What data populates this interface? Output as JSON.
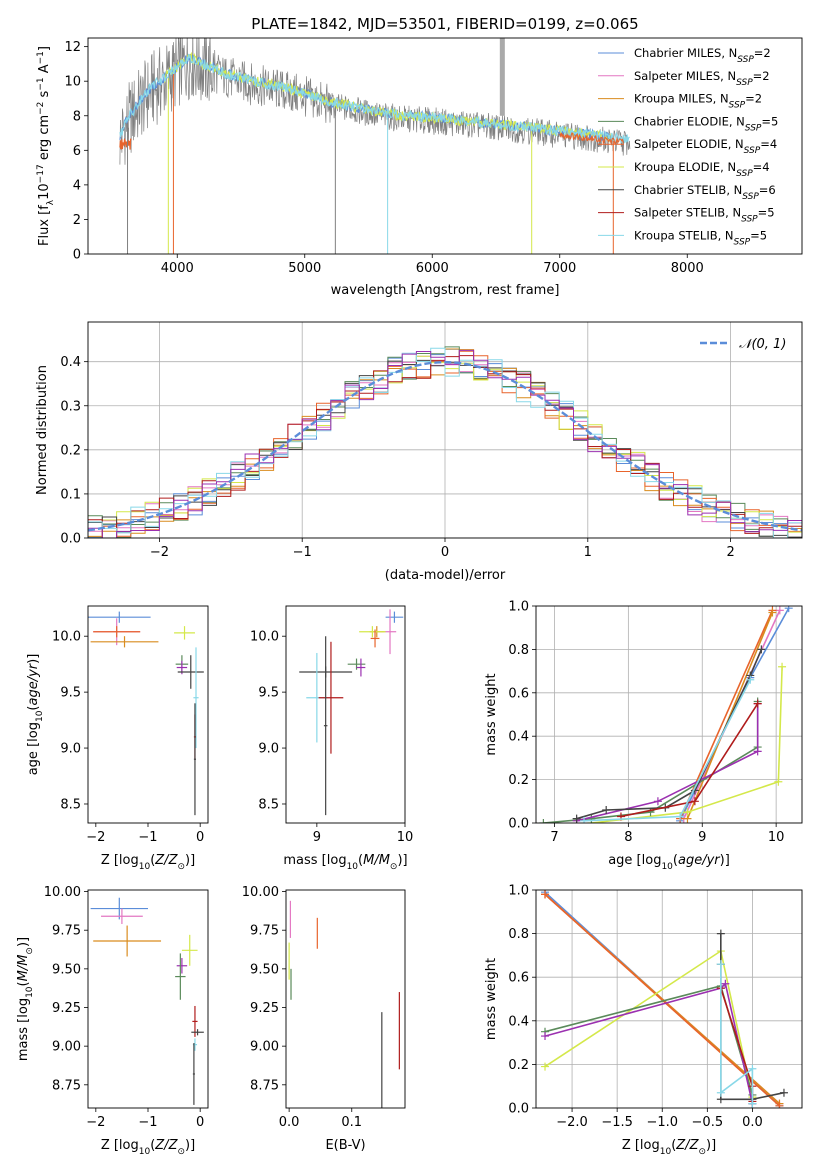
{
  "figure_title": "PLATE=1842, MJD=53501, FIBERID=0199, z=0.065",
  "colors": {
    "chabrier_miles": "#5b8dd9",
    "salpeter_miles": "#e377c2",
    "kroupa_miles": "#d98c1f",
    "chabrier_elodie": "#5a8a5a",
    "salpeter_elodie": "#e8642c",
    "kroupa_elodie": "#d4e84a",
    "chabrier_stelib": "#444444",
    "salpeter_stelib": "#b01c1c",
    "kroupa_stelib": "#88d8e8",
    "purple": "#9b30b0",
    "data_grey": "#808080"
  },
  "chart_data": [
    {
      "id": "spectrum",
      "type": "line",
      "xlabel": "wavelength [Angstrom, rest frame]",
      "ylabel": "Flux [f",
      "ylabel_parts": [
        "Flux [f",
        "λ",
        "10",
        "−17",
        " erg cm",
        "−2",
        " s",
        "−1",
        " A",
        "−1",
        "]"
      ],
      "xlim": [
        3300,
        8900
      ],
      "ylim": [
        0,
        12.5
      ],
      "xticks": [
        4000,
        5000,
        6000,
        7000,
        8000
      ],
      "yticks": [
        0,
        2,
        4,
        6,
        8,
        10,
        12
      ],
      "continuum": {
        "x": [
          3550,
          3600,
          3700,
          3800,
          3900,
          4000,
          4100,
          4200,
          4400,
          4600,
          4800,
          5000,
          5200,
          5400,
          5600,
          5800,
          6000,
          6200,
          6400,
          6600,
          6800,
          7000,
          7200,
          7400,
          7600,
          7800,
          8000,
          8200,
          8400,
          8600,
          8800
        ],
        "y": [
          6.6,
          7.5,
          8.6,
          9.5,
          10.0,
          10.6,
          11.2,
          10.8,
          10.2,
          9.8,
          9.5,
          9.1,
          8.6,
          8.3,
          8.0,
          7.8,
          7.7,
          7.55,
          7.4,
          7.25,
          7.1,
          6.9,
          6.75,
          6.55,
          6.4,
          6.3,
          6.15,
          6.05,
          5.95,
          5.85,
          5.75
        ]
      },
      "legend": [
        {
          "name": "Chabrier MILES, N",
          "sub": "SSP",
          "tail": "=2",
          "color_key": "chabrier_miles"
        },
        {
          "name": "Salpeter MILES, N",
          "sub": "SSP",
          "tail": "=2",
          "color_key": "salpeter_miles"
        },
        {
          "name": "Kroupa MILES, N",
          "sub": "SSP",
          "tail": "=2",
          "color_key": "kroupa_miles"
        },
        {
          "name": "Chabrier ELODIE, N",
          "sub": "SSP",
          "tail": "=5",
          "color_key": "chabrier_elodie"
        },
        {
          "name": "Salpeter ELODIE, N",
          "sub": "SSP",
          "tail": "=4",
          "color_key": "salpeter_elodie"
        },
        {
          "name": "Kroupa ELODIE, N",
          "sub": "SSP",
          "tail": "=4",
          "color_key": "kroupa_elodie"
        },
        {
          "name": "Chabrier STELIB, N",
          "sub": "SSP",
          "tail": "=6",
          "color_key": "chabrier_stelib"
        },
        {
          "name": "Salpeter STELIB, N",
          "sub": "SSP",
          "tail": "=5",
          "color_key": "salpeter_stelib"
        },
        {
          "name": "Kroupa STELIB, N",
          "sub": "SSP",
          "tail": "=5",
          "color_key": "kroupa_stelib"
        }
      ]
    },
    {
      "id": "residuals",
      "type": "line",
      "xlabel": "(data-model)/error",
      "ylabel": "Normed distribution",
      "xlim": [
        -2.5,
        2.5
      ],
      "ylim": [
        0,
        0.49
      ],
      "xticks": [
        -2,
        -1,
        0,
        1,
        2
      ],
      "yticks": [
        0.0,
        0.1,
        0.2,
        0.3,
        0.4
      ],
      "grid": true,
      "legend_label": "𝒩(0, 1)",
      "legend_position": "top-right"
    },
    {
      "id": "age_vs_Z",
      "type": "scatter",
      "xlabel": "Z [log",
      "ylabel": "age  [log",
      "xlim": [
        -2.15,
        0.15
      ],
      "ylim": [
        8.33,
        10.27
      ],
      "xticks": [
        -2,
        -1,
        0
      ],
      "yticks": [
        8.5,
        9.0,
        9.5,
        10.0
      ],
      "points": [
        {
          "x": -1.55,
          "y": 10.17,
          "xerr": 0.6,
          "yerr": 0.05,
          "c": "chabrier_miles"
        },
        {
          "x": -1.6,
          "y": 10.04,
          "xerr": 0.45,
          "yerr": 0.12,
          "c": "salpeter_miles"
        },
        {
          "x": -1.6,
          "y": 10.04,
          "xerr": 0.45,
          "yerr": 0.05,
          "c": "salpeter_elodie"
        },
        {
          "x": -1.45,
          "y": 9.95,
          "xerr": 0.65,
          "yerr": 0.05,
          "c": "kroupa_miles"
        },
        {
          "x": -0.3,
          "y": 10.03,
          "xerr": 0.2,
          "yerr": 0.06,
          "c": "kroupa_elodie"
        },
        {
          "x": -0.35,
          "y": 9.75,
          "xerr": 0.12,
          "yerr": 0.08,
          "c": "chabrier_elodie"
        },
        {
          "x": -0.35,
          "y": 9.72,
          "xerr": 0.1,
          "yerr": 0.06,
          "c": "purple"
        },
        {
          "x": -0.18,
          "y": 9.68,
          "xerr": 0.25,
          "yerr": 0.15,
          "c": "chabrier_stelib"
        },
        {
          "x": -0.08,
          "y": 9.45,
          "xerr": 0.05,
          "yerr": 0.45,
          "c": "kroupa_stelib"
        },
        {
          "x": -0.1,
          "y": 9.1,
          "xerr": 0.02,
          "yerr": 0.2,
          "c": "salpeter_stelib"
        },
        {
          "x": -0.1,
          "y": 8.9,
          "xerr": 0.02,
          "yerr": 0.5,
          "c": "chabrier_stelib"
        }
      ]
    },
    {
      "id": "age_vs_mass",
      "type": "scatter",
      "xlabel": "mass [log",
      "ylabel": "",
      "xlim": [
        8.65,
        10.0
      ],
      "ylim": [
        8.33,
        10.27
      ],
      "xticks": [
        9,
        10
      ],
      "yticks": [
        8.5,
        9.0,
        9.5,
        10.0
      ],
      "points": [
        {
          "x": 9.88,
          "y": 10.17,
          "xerr": 0.1,
          "yerr": 0.05,
          "c": "chabrier_miles"
        },
        {
          "x": 9.83,
          "y": 10.04,
          "xerr": 0.07,
          "yerr": 0.2,
          "c": "salpeter_miles"
        },
        {
          "x": 9.68,
          "y": 10.04,
          "xerr": 0.08,
          "yerr": 0.05,
          "c": "kroupa_miles"
        },
        {
          "x": 9.63,
          "y": 10.04,
          "xerr": 0.15,
          "yerr": 0.05,
          "c": "kroupa_elodie"
        },
        {
          "x": 9.66,
          "y": 9.98,
          "xerr": 0.05,
          "yerr": 0.08,
          "c": "salpeter_elodie"
        },
        {
          "x": 9.45,
          "y": 9.75,
          "xerr": 0.1,
          "yerr": 0.05,
          "c": "chabrier_elodie"
        },
        {
          "x": 9.5,
          "y": 9.72,
          "xerr": 0.05,
          "yerr": 0.08,
          "c": "purple"
        },
        {
          "x": 9.1,
          "y": 9.68,
          "xerr": 0.3,
          "yerr": 0.05,
          "c": "chabrier_stelib"
        },
        {
          "x": 9.0,
          "y": 9.45,
          "xerr": 0.12,
          "yerr": 0.4,
          "c": "kroupa_stelib"
        },
        {
          "x": 9.16,
          "y": 9.45,
          "xerr": 0.14,
          "yerr": 0.5,
          "c": "salpeter_stelib"
        },
        {
          "x": 9.1,
          "y": 9.2,
          "xerr": 0.02,
          "yerr": 0.8,
          "c": "chabrier_stelib"
        }
      ]
    },
    {
      "id": "weight_vs_age",
      "type": "line",
      "xlabel": "age  [log",
      "ylabel": "mass weight",
      "xlim": [
        6.75,
        10.35
      ],
      "ylim": [
        0,
        1.0
      ],
      "xticks": [
        7,
        8,
        9,
        10
      ],
      "yticks": [
        0.0,
        0.2,
        0.4,
        0.6,
        0.8,
        1.0
      ],
      "grid": true,
      "series": [
        {
          "c": "chabrier_miles",
          "x": [
            8.7,
            9.65,
            10.17
          ],
          "y": [
            0.01,
            0.67,
            0.99
          ]
        },
        {
          "c": "salpeter_miles",
          "x": [
            8.75,
            10.05
          ],
          "y": [
            0.02,
            0.98
          ]
        },
        {
          "c": "salpeter_elodie",
          "x": [
            8.7,
            9.95
          ],
          "y": [
            0.02,
            0.98
          ]
        },
        {
          "c": "kroupa_miles",
          "x": [
            8.8,
            9.95
          ],
          "y": [
            0.02,
            0.97
          ]
        },
        {
          "c": "kroupa_elodie",
          "x": [
            7.5,
            8.8,
            10.03,
            10.08
          ],
          "y": [
            0.0,
            0.05,
            0.19,
            0.72
          ]
        },
        {
          "c": "chabrier_elodie",
          "x": [
            6.85,
            7.5,
            8.3,
            9.75,
            9.75
          ],
          "y": [
            0.0,
            0.02,
            0.05,
            0.35,
            0.56
          ]
        },
        {
          "c": "purple",
          "x": [
            7.3,
            8.4,
            9.75,
            9.75
          ],
          "y": [
            0.01,
            0.1,
            0.33,
            0.55
          ]
        },
        {
          "c": "chabrier_stelib",
          "x": [
            7.3,
            7.7,
            8.5,
            8.9,
            9.65,
            9.8
          ],
          "y": [
            0.02,
            0.06,
            0.07,
            0.15,
            0.68,
            0.8
          ]
        },
        {
          "c": "salpeter_stelib",
          "x": [
            7.9,
            8.9,
            9.75
          ],
          "y": [
            0.03,
            0.1,
            0.55
          ]
        },
        {
          "c": "kroupa_stelib",
          "x": [
            7.4,
            8.7,
            9.65
          ],
          "y": [
            0.01,
            0.03,
            0.66
          ]
        }
      ]
    },
    {
      "id": "mass_vs_Z",
      "type": "scatter",
      "xlabel": "Z [log",
      "ylabel": "mass [log",
      "xlim": [
        -2.15,
        0.15
      ],
      "ylim": [
        8.6,
        10.01
      ],
      "xticks": [
        -2,
        -1,
        0
      ],
      "yticks": [
        8.75,
        9.0,
        9.25,
        9.5,
        9.75,
        10.0
      ],
      "points": [
        {
          "x": -1.55,
          "y": 9.89,
          "xerr": 0.55,
          "yerr": 0.07,
          "c": "chabrier_miles"
        },
        {
          "x": -1.5,
          "y": 9.84,
          "xerr": 0.4,
          "yerr": 0.05,
          "c": "salpeter_miles"
        },
        {
          "x": -1.4,
          "y": 9.68,
          "xerr": 0.65,
          "yerr": 0.1,
          "c": "kroupa_miles"
        },
        {
          "x": -0.2,
          "y": 9.62,
          "xerr": 0.15,
          "yerr": 0.1,
          "c": "kroupa_elodie"
        },
        {
          "x": -0.35,
          "y": 9.52,
          "xerr": 0.1,
          "yerr": 0.05,
          "c": "purple"
        },
        {
          "x": -0.38,
          "y": 9.45,
          "xerr": 0.1,
          "yerr": 0.15,
          "c": "chabrier_elodie"
        },
        {
          "x": -0.1,
          "y": 9.16,
          "xerr": 0.05,
          "yerr": 0.1,
          "c": "salpeter_stelib"
        },
        {
          "x": -0.05,
          "y": 9.09,
          "xerr": 0.12,
          "yerr": 0.02,
          "c": "chabrier_stelib"
        },
        {
          "x": -0.1,
          "y": 9.01,
          "xerr": 0.04,
          "yerr": 0.04,
          "c": "kroupa_stelib"
        },
        {
          "x": -0.12,
          "y": 8.82,
          "xerr": 0.02,
          "yerr": 0.2,
          "c": "chabrier_stelib"
        }
      ]
    },
    {
      "id": "mass_vs_ebv",
      "type": "scatter",
      "xlabel": "E(B-V)",
      "ylabel": "",
      "xlim": [
        -0.005,
        0.185
      ],
      "ylim": [
        8.6,
        10.01
      ],
      "xticks": [
        0.0,
        0.1
      ],
      "yticks": [
        8.75,
        9.0,
        9.25,
        9.5,
        9.75,
        10.0
      ],
      "points": [
        {
          "x": 0.002,
          "y": 9.82,
          "xerr": 0.0,
          "yerr": 0.12,
          "c": "salpeter_miles"
        },
        {
          "x": 0.0,
          "y": 9.55,
          "xerr": 0.0,
          "yerr": 0.12,
          "c": "kroupa_elodie"
        },
        {
          "x": 0.003,
          "y": 9.4,
          "xerr": 0.0,
          "yerr": 0.1,
          "c": "chabrier_elodie"
        },
        {
          "x": 0.045,
          "y": 9.73,
          "xerr": 0.0,
          "yerr": 0.1,
          "c": "salpeter_elodie"
        },
        {
          "x": 0.148,
          "y": 8.9,
          "xerr": 0.0,
          "yerr": 0.32,
          "c": "chabrier_stelib"
        },
        {
          "x": 0.176,
          "y": 9.1,
          "xerr": 0.0,
          "yerr": 0.25,
          "c": "salpeter_stelib"
        }
      ]
    },
    {
      "id": "weight_vs_Z",
      "type": "line",
      "xlabel": "Z [log",
      "ylabel": "mass weight",
      "xlim": [
        -2.4,
        0.55
      ],
      "ylim": [
        0,
        1.0
      ],
      "xticks": [
        -2.0,
        -1.5,
        -1.0,
        -0.5,
        0.0
      ],
      "yticks": [
        0.0,
        0.2,
        0.4,
        0.6,
        0.8,
        1.0
      ],
      "grid": true,
      "series": [
        {
          "c": "chabrier_miles",
          "x": [
            -2.3,
            0.3
          ],
          "y": [
            0.99,
            0.01
          ]
        },
        {
          "c": "salpeter_miles",
          "x": [
            -2.3,
            0.3
          ],
          "y": [
            0.98,
            0.02
          ]
        },
        {
          "c": "kroupa_miles",
          "x": [
            -2.3,
            0.3
          ],
          "y": [
            0.98,
            0.02
          ]
        },
        {
          "c": "salpeter_elodie",
          "x": [
            -2.3,
            0.3
          ],
          "y": [
            0.98,
            0.01
          ]
        },
        {
          "c": "kroupa_elodie",
          "x": [
            -2.3,
            -0.35,
            0.0
          ],
          "y": [
            0.19,
            0.72,
            0.05
          ]
        },
        {
          "c": "chabrier_elodie",
          "x": [
            -2.3,
            -0.35,
            0.0,
            0.0
          ],
          "y": [
            0.35,
            0.56,
            0.06,
            0.02
          ]
        },
        {
          "c": "purple",
          "x": [
            -2.3,
            -0.35,
            -0.3,
            0.0
          ],
          "y": [
            0.33,
            0.55,
            0.57,
            0.02
          ]
        },
        {
          "c": "chabrier_stelib",
          "x": [
            -0.35,
            -0.35,
            -0.35,
            0.0,
            0.35
          ],
          "y": [
            0.8,
            0.66,
            0.04,
            0.04,
            0.07
          ]
        },
        {
          "c": "salpeter_stelib",
          "x": [
            -0.35,
            0.0,
            0.0
          ],
          "y": [
            0.55,
            0.1,
            0.03
          ]
        },
        {
          "c": "kroupa_stelib",
          "x": [
            -0.35,
            -0.35,
            0.0,
            0.0
          ],
          "y": [
            0.66,
            0.07,
            0.18,
            0.02
          ]
        }
      ]
    }
  ]
}
